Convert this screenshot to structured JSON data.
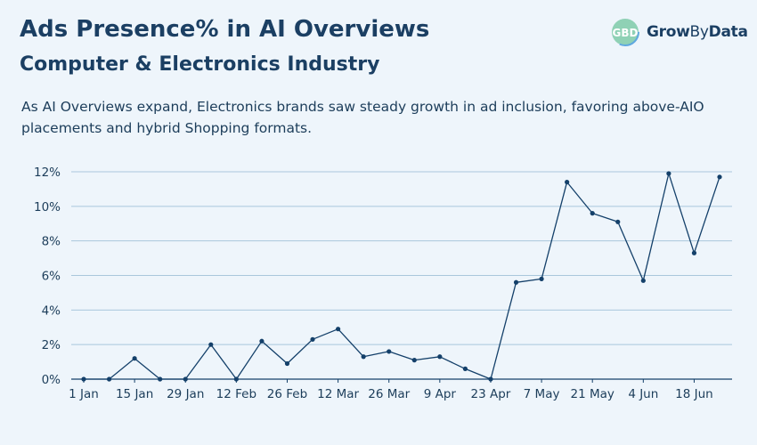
{
  "header": {
    "title": "Ads Presence% in AI Overviews",
    "subtitle": "Computer & Electronics Industry",
    "description": "As AI Overviews expand, Electronics brands saw steady growth in ad inclusion, favoring above-AIO placements and hybrid Shopping formats."
  },
  "logo": {
    "mark": "GBD",
    "name_part1": "Grow",
    "name_part2": "By",
    "name_part3": "Data"
  },
  "chart_data": {
    "type": "line",
    "title": "Ads Presence% in AI Overviews",
    "subtitle": "Computer & Electronics Industry",
    "xlabel": "",
    "ylabel": "",
    "x_tick_labels": [
      "1 Jan",
      "15 Jan",
      "29 Jan",
      "12 Feb",
      "26 Feb",
      "12 Mar",
      "26 Mar",
      "9 Apr",
      "23 Apr",
      "7 May",
      "21 May",
      "4 Jun",
      "18 Jun"
    ],
    "y_ticks": [
      0,
      2,
      4,
      6,
      8,
      10,
      12
    ],
    "y_tick_labels": [
      "0%",
      "2%",
      "4%",
      "6%",
      "8%",
      "10%",
      "12%"
    ],
    "ylim": [
      0,
      12
    ],
    "grid": true,
    "legend": "none",
    "series": [
      {
        "values": [
          0,
          0,
          1.2,
          0,
          0,
          2.0,
          0,
          2.2,
          0.9,
          2.3,
          2.9,
          1.3,
          1.6,
          1.1,
          1.3,
          0.6,
          0,
          5.6,
          5.8,
          11.4,
          9.6,
          9.1,
          5.7,
          11.9,
          7.3,
          11.7
        ],
        "color": "#14406a"
      }
    ],
    "colors": {
      "line": "#14406a",
      "grid": "#a9c7dc",
      "axis": "#14406a"
    }
  }
}
